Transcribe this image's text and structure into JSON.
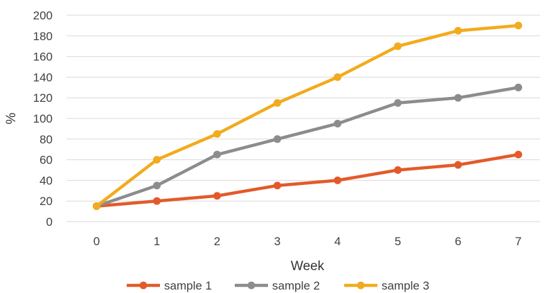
{
  "chart_data": {
    "type": "line",
    "x": [
      0,
      1,
      2,
      3,
      4,
      5,
      6,
      7
    ],
    "xlabel": "Week",
    "ylabel": "%",
    "ylim": [
      0,
      200
    ],
    "yticks": [
      0,
      20,
      40,
      60,
      80,
      100,
      120,
      140,
      160,
      180,
      200
    ],
    "grid": "horizontal",
    "legend_position": "bottom",
    "series": [
      {
        "name": "sample 1",
        "color": "#e35a2a",
        "values": [
          15,
          20,
          25,
          35,
          40,
          50,
          55,
          65
        ]
      },
      {
        "name": "sample 2",
        "color": "#8c8c8c",
        "values": [
          15,
          35,
          65,
          80,
          95,
          115,
          120,
          130
        ]
      },
      {
        "name": "sample 3",
        "color": "#f2ab1e",
        "values": [
          15,
          60,
          85,
          115,
          140,
          170,
          185,
          190
        ]
      }
    ]
  }
}
